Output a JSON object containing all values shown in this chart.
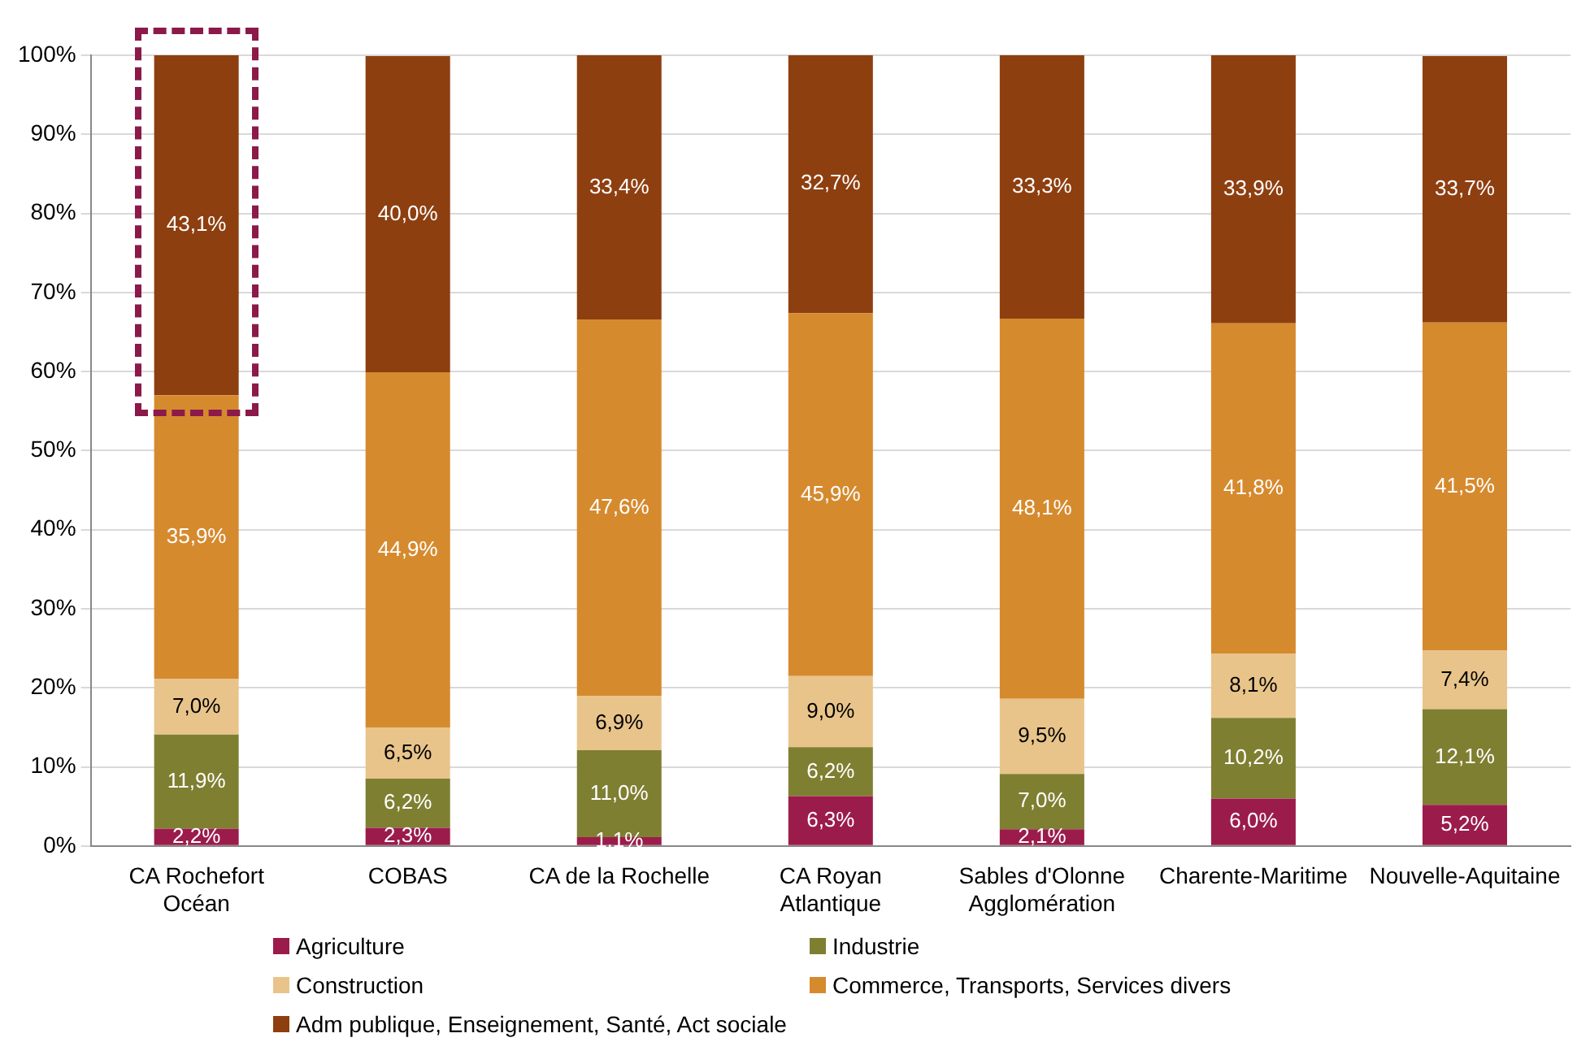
{
  "chart_data": {
    "type": "bar",
    "stacked": true,
    "categories": [
      "CA Rochefort Océan",
      "COBAS",
      "CA de la Rochelle",
      "CA Royan Atlantique",
      "Sables d'Olonne Agglomération",
      "Charente-Maritime",
      "Nouvelle-Aquitaine"
    ],
    "series": [
      {
        "name": "Agriculture",
        "color": "#9b1c4b",
        "values": [
          2.2,
          2.3,
          1.1,
          6.3,
          2.1,
          6.0,
          5.2
        ],
        "value_labels": [
          "2,2%",
          "2,3%",
          "1,1%",
          "6,3%",
          "2,1%",
          "6,0%",
          "5,2%"
        ]
      },
      {
        "name": "Industrie",
        "color": "#7f7f32",
        "values": [
          11.9,
          6.2,
          11.0,
          6.2,
          7.0,
          10.2,
          12.1
        ],
        "value_labels": [
          "11,9%",
          "6,2%",
          "11,0%",
          "6,2%",
          "7,0%",
          "10,2%",
          "12,1%"
        ]
      },
      {
        "name": "Construction",
        "color": "#e8c48a",
        "values": [
          7.0,
          6.5,
          6.9,
          9.0,
          9.5,
          8.1,
          7.4
        ],
        "value_labels": [
          "7,0%",
          "6,5%",
          "6,9%",
          "9,0%",
          "9,5%",
          "8,1%",
          "7,4%"
        ]
      },
      {
        "name": "Commerce, Transports, Services divers",
        "color": "#d68a2e",
        "values": [
          35.9,
          44.9,
          47.6,
          45.9,
          48.1,
          41.8,
          41.5
        ],
        "value_labels": [
          "35,9%",
          "44,9%",
          "47,6%",
          "45,9%",
          "48,1%",
          "41,8%",
          "41,5%"
        ]
      },
      {
        "name": "Adm publique, Enseignement, Santé, Act sociale",
        "color": "#8e3f10",
        "values": [
          43.1,
          40.0,
          33.4,
          32.7,
          33.3,
          33.9,
          33.7
        ],
        "value_labels": [
          "43,1%",
          "40,0%",
          "33,4%",
          "32,7%",
          "33,3%",
          "33,9%",
          "33,7%"
        ]
      }
    ],
    "ylim": [
      0,
      100
    ],
    "yticks": [
      {
        "value": 0,
        "label": "0%"
      },
      {
        "value": 10,
        "label": "10%"
      },
      {
        "value": 20,
        "label": "20%"
      },
      {
        "value": 30,
        "label": "30%"
      },
      {
        "value": 40,
        "label": "40%"
      },
      {
        "value": 50,
        "label": "50%"
      },
      {
        "value": 60,
        "label": "60%"
      },
      {
        "value": 70,
        "label": "70%"
      },
      {
        "value": 80,
        "label": "80%"
      },
      {
        "value": 90,
        "label": "90%"
      },
      {
        "value": 100,
        "label": "100%"
      }
    ],
    "grid": "y",
    "legend": "bottom"
  }
}
